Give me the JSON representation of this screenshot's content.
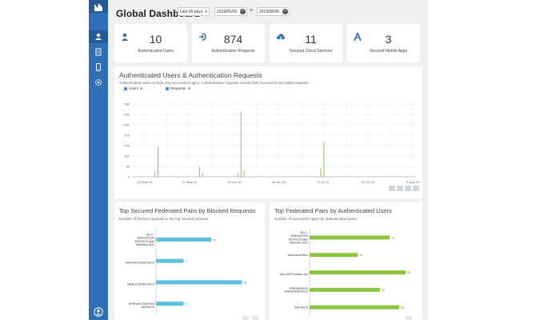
{
  "header": {
    "title": "Global Dashboard",
    "range": "Last 90 days",
    "date_from": "2019/05/09",
    "to_label": "to",
    "date_to": "2019/08/06"
  },
  "stats": [
    {
      "value": "10",
      "label": "Authenticated Users",
      "icon": "user-icon"
    },
    {
      "value": "874",
      "label": "Authentication Requests",
      "icon": "login-icon"
    },
    {
      "value": "11",
      "label": "Secured Cloud Services",
      "icon": "cloud-icon"
    },
    {
      "value": "3",
      "label": "Secured Mobile Apps",
      "icon": "app-icon"
    }
  ],
  "colors": {
    "sidebar": "#2f6fb5",
    "users": "#5bc0de",
    "requests": "#8cc63f"
  },
  "auth_chart": {
    "title": "Authenticated Users & Authentication Requests",
    "subtitle": "Authenticated users include only successful logins. Authentication requests include both successful and failed requests.",
    "legend": [
      "Users",
      "Requests"
    ]
  },
  "blocked_chart": {
    "title": "Top Secured Federated Pairs by Blocked Requests",
    "subtitle": "Number of blocked requests to the top secured services."
  },
  "authorized_chart": {
    "title": "Top Federated Pairs by Authenticated Users",
    "subtitle": "Number of successful logins by authenticated users."
  },
  "chart_data": [
    {
      "type": "bar",
      "title": "Authenticated Users & Authentication Requests",
      "x_ticks": [
        "13 May 19",
        "20 May 19",
        "27 May 19",
        "3 Jun 19",
        "10 Jun 19",
        "17 Jun 19",
        "24 Jun 19",
        "1 Jul 19",
        "8 Jul 19",
        "15 Jul 19",
        "22 Jul 19",
        "29 Jul 19",
        "5 Aug 19"
      ],
      "y_ticks": [
        0,
        50,
        100,
        150,
        200,
        250,
        300,
        350
      ],
      "ylim": [
        0,
        350
      ],
      "grid": true,
      "legend_position": "top-left",
      "series": [
        {
          "name": "Users",
          "color": "#5bc0de",
          "points": [
            {
              "x": "17 May 19",
              "y": 4
            },
            {
              "x": "31 May 19",
              "y": 3
            },
            {
              "x": "12 Jun 19",
              "y": 5
            },
            {
              "x": "8 Jul 19",
              "y": 3
            }
          ]
        },
        {
          "name": "Requests",
          "color": "#8cc63f",
          "points": [
            {
              "x": "16 May 19",
              "y": 25
            },
            {
              "x": "17 May 19",
              "y": 145
            },
            {
              "x": "30 May 19",
              "y": 45
            },
            {
              "x": "31 May 19",
              "y": 18
            },
            {
              "x": "11 Jun 19",
              "y": 20
            },
            {
              "x": "12 Jun 19",
              "y": 310
            },
            {
              "x": "13 Jun 19",
              "y": 30
            },
            {
              "x": "7 Jul 19",
              "y": 40
            },
            {
              "x": "8 Jul 19",
              "y": 165
            }
          ]
        }
      ]
    },
    {
      "type": "bar",
      "orientation": "horizontal",
      "title": "Top Secured Federated Pairs by Blocked Requests",
      "color": "#5bc0de",
      "categories": [
        "MLX - WSFed/OSKI ADFS/ICS Max Websites URL",
        "WSFed/ICS/ADFS/ICS",
        "SAML/ICS/ADFS/ICS",
        "WSFed/ICS/WSFed ADFS/ICS"
      ],
      "values": [
        18,
        9,
        28,
        9
      ]
    },
    {
      "type": "bar",
      "orientation": "horizontal",
      "title": "Top Federated Pairs by Authenticated Users",
      "color": "#8cc63f",
      "categories": [
        "MLX - WSFed/OSKI ADFS/ICS Max Websites URL",
        "saml/sameSites",
        "oidc-ADFS-reader-sys",
        "othersyspaced WSFed/ADFS/ICS",
        "ADFS/ICS"
      ],
      "values": [
        25,
        15,
        30,
        22,
        28
      ]
    }
  ]
}
